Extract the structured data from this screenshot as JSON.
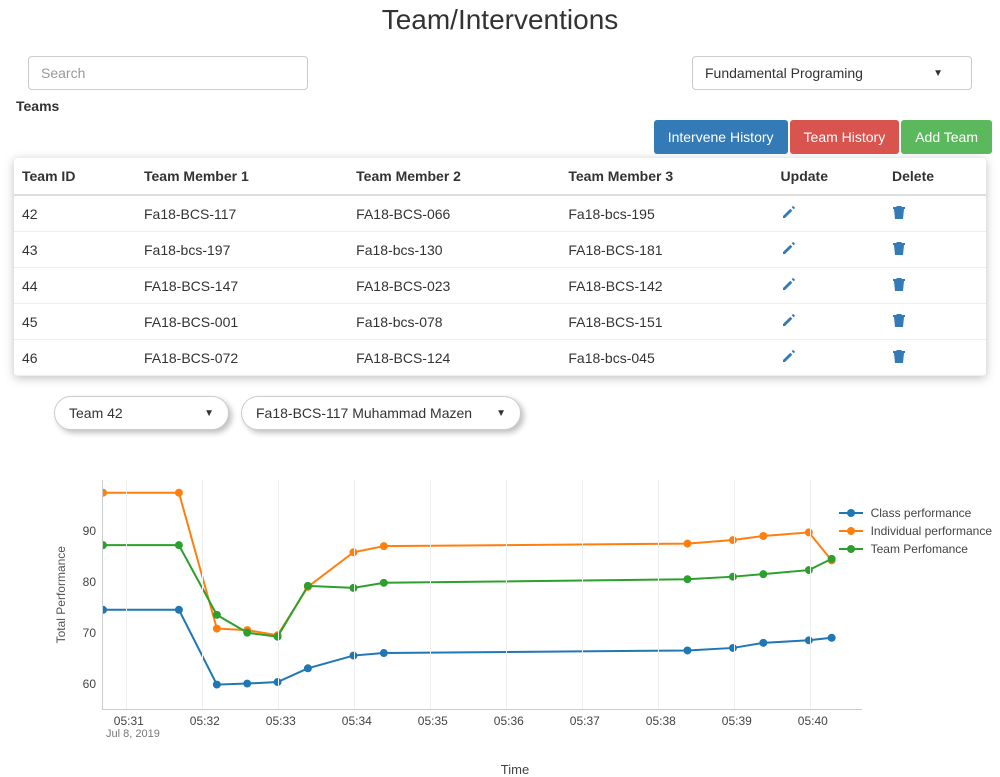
{
  "title": "Team/Interventions",
  "search": {
    "placeholder": "Search"
  },
  "course_select": {
    "value": "Fundamental Programing"
  },
  "teams_label": "Teams",
  "buttons": {
    "intervene": "Intervene History",
    "team_history": "Team History",
    "add_team": "Add Team"
  },
  "table": {
    "columns": [
      "Team ID",
      "Team Member 1",
      "Team Member 2",
      "Team Member 3",
      "Update",
      "Delete"
    ],
    "rows": [
      [
        "42",
        "Fa18-BCS-117",
        "FA18-BCS-066",
        "Fa18-bcs-195"
      ],
      [
        "43",
        "Fa18-bcs-197",
        "Fa18-bcs-130",
        "FA18-BCS-181"
      ],
      [
        "44",
        "FA18-BCS-147",
        "FA18-BCS-023",
        "FA18-BCS-142"
      ],
      [
        "45",
        "FA18-BCS-001",
        "Fa18-bcs-078",
        "FA18-BCS-151"
      ],
      [
        "46",
        "FA18-BCS-072",
        "FA18-BCS-124",
        "Fa18-bcs-045"
      ]
    ],
    "icon_color": "#337ab7"
  },
  "team_select": {
    "value": "Team 42"
  },
  "member_select": {
    "value": "Fa18-BCS-117 Muhammad Mazen"
  },
  "chart": {
    "type": "line",
    "ylabel": "Total Performance",
    "xlabel": "Time",
    "ylim": [
      55,
      100
    ],
    "yticks": [
      60,
      70,
      80,
      90
    ],
    "xlim": [
      0,
      10
    ],
    "xticks": [
      {
        "pos": 0.3,
        "label": "05:31"
      },
      {
        "pos": 1.3,
        "label": "05:32"
      },
      {
        "pos": 2.3,
        "label": "05:33"
      },
      {
        "pos": 3.3,
        "label": "05:34"
      },
      {
        "pos": 4.3,
        "label": "05:35"
      },
      {
        "pos": 5.3,
        "label": "05:36"
      },
      {
        "pos": 6.3,
        "label": "05:37"
      },
      {
        "pos": 7.3,
        "label": "05:38"
      },
      {
        "pos": 8.3,
        "label": "05:39"
      },
      {
        "pos": 9.3,
        "label": "05:40"
      }
    ],
    "x_date": "Jul 8, 2019",
    "grid_color": "#eeeeee",
    "axis_color": "#cccccc",
    "background_color": "#ffffff",
    "marker_size": 4,
    "line_width": 2,
    "series": [
      {
        "name": "Class performance",
        "color": "#1f77b4",
        "x": [
          0,
          1,
          1.5,
          1.9,
          2.3,
          2.7,
          3.3,
          3.7,
          7.7,
          8.3,
          8.7,
          9.3,
          9.6
        ],
        "y": [
          74.5,
          74.5,
          59.8,
          60,
          60.3,
          63,
          65.5,
          66,
          66.5,
          67,
          68,
          68.5,
          69
        ]
      },
      {
        "name": "Individual performance",
        "color": "#ff7f0e",
        "x": [
          0,
          1,
          1.5,
          1.9,
          2.3,
          2.7,
          3.3,
          3.7,
          7.7,
          8.3,
          8.7,
          9.3,
          9.6
        ],
        "y": [
          97.5,
          97.5,
          70.8,
          70.5,
          69.5,
          79,
          85.8,
          87,
          87.5,
          88.2,
          89,
          89.7,
          84.2
        ]
      },
      {
        "name": "Team Perfomance",
        "color": "#2ca02c",
        "x": [
          0,
          1,
          1.5,
          1.9,
          2.3,
          2.7,
          3.3,
          3.7,
          7.7,
          8.3,
          8.7,
          9.3,
          9.6
        ],
        "y": [
          87.2,
          87.2,
          73.5,
          70,
          69.2,
          79.2,
          78.8,
          79.8,
          80.5,
          81,
          81.5,
          82.3,
          84.5
        ]
      }
    ]
  }
}
